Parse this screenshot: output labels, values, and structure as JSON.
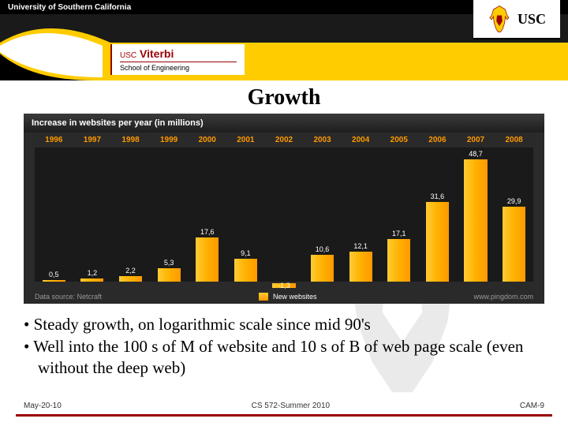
{
  "header": {
    "university": "University of Southern California",
    "usc": "USC",
    "viterbi_brand": "USC",
    "viterbi_name": "Viterbi",
    "viterbi_sub": "School of Engineering"
  },
  "slide": {
    "title": "Growth"
  },
  "chart": {
    "type": "bar",
    "title": "Increase in websites per year (in millions)",
    "years": [
      "1996",
      "1997",
      "1998",
      "1999",
      "2000",
      "2001",
      "2002",
      "2003",
      "2004",
      "2005",
      "2006",
      "2007",
      "2008"
    ],
    "values": [
      0.5,
      1.2,
      2.2,
      5.3,
      17.6,
      9.1,
      -1.3,
      10.6,
      12.1,
      17.1,
      31.6,
      48.7,
      29.9
    ],
    "max_value": 48.7,
    "bar_color_start": "#ffcc33",
    "bar_color_end": "#ff9900",
    "year_color": "#ff9900",
    "value_color": "#ffffff",
    "background": "#1a1a1a",
    "panel_background": "#2a2a2a",
    "source_text": "Data source: Netcraft",
    "legend_label": "New websites",
    "attribution": "www.pingdom.com"
  },
  "bullets": [
    "Steady growth, on logarithmic scale since mid 90's",
    "Well into the 100 s of M of website and 10 s of B of web page scale (even without the deep web)"
  ],
  "footer": {
    "left": "May-20-10",
    "center": "CS 572-Summer 2010",
    "right": "CAM-9"
  },
  "colors": {
    "cardinal": "#990000",
    "gold": "#ffcc00",
    "black": "#000000"
  }
}
